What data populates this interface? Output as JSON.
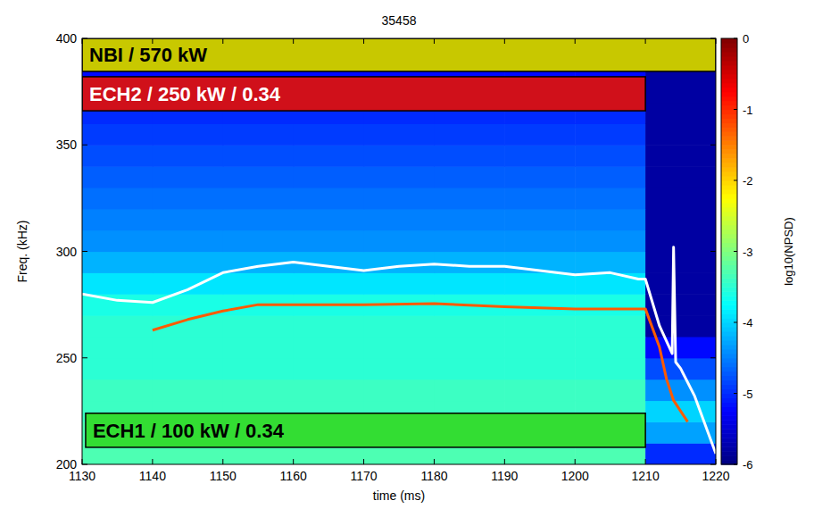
{
  "chart_data": {
    "type": "heatmap",
    "title": "35458",
    "x_label": "time (ms)",
    "y_label": "Freq. (kHz)",
    "xlim": [
      1130,
      1220
    ],
    "ylim": [
      200,
      400
    ],
    "xticks": [
      1130,
      1140,
      1150,
      1160,
      1170,
      1180,
      1190,
      1200,
      1210,
      1220
    ],
    "yticks": [
      200,
      250,
      300,
      350,
      400
    ],
    "heatmap": {
      "x": [
        1130,
        1140,
        1150,
        1160,
        1170,
        1180,
        1190,
        1200,
        1210,
        1220
      ],
      "y": [
        200,
        210,
        220,
        230,
        240,
        250,
        260,
        270,
        280,
        290,
        300,
        310,
        320,
        330,
        340,
        350,
        360,
        370,
        380,
        390,
        400
      ],
      "cells": [
        [
          -3.3,
          -3.3,
          -3.3,
          -3.3,
          -3.3,
          -3.3,
          -3.3,
          -3.3,
          -5.0
        ],
        [
          -3.3,
          -3.3,
          -3.3,
          -3.3,
          -3.3,
          -3.3,
          -3.3,
          -3.3,
          -4.3
        ],
        [
          -3.4,
          -3.4,
          -3.4,
          -3.4,
          -3.4,
          -3.4,
          -3.4,
          -3.4,
          -4.0
        ],
        [
          -3.4,
          -3.4,
          -3.4,
          -3.4,
          -3.4,
          -3.4,
          -3.4,
          -3.4,
          -4.4
        ],
        [
          -3.5,
          -3.5,
          -3.5,
          -3.5,
          -3.5,
          -3.5,
          -3.5,
          -3.5,
          -4.8
        ],
        [
          -3.5,
          -3.5,
          -3.5,
          -3.5,
          -3.5,
          -3.5,
          -3.5,
          -3.5,
          -5.2
        ],
        [
          -3.5,
          -3.5,
          -3.5,
          -3.5,
          -3.5,
          -3.5,
          -3.5,
          -3.5,
          -5.8
        ],
        [
          -3.6,
          -3.6,
          -3.6,
          -3.6,
          -3.6,
          -3.6,
          -3.6,
          -3.6,
          -5.8
        ],
        [
          -3.9,
          -3.9,
          -3.9,
          -3.9,
          -3.9,
          -3.9,
          -3.9,
          -3.9,
          -5.8
        ],
        [
          -4.2,
          -4.2,
          -4.2,
          -4.2,
          -4.2,
          -4.2,
          -4.2,
          -4.2,
          -5.8
        ],
        [
          -4.4,
          -4.4,
          -4.4,
          -4.4,
          -4.4,
          -4.4,
          -4.4,
          -4.4,
          -5.8
        ],
        [
          -4.5,
          -4.5,
          -4.5,
          -4.5,
          -4.5,
          -4.5,
          -4.5,
          -4.5,
          -5.8
        ],
        [
          -4.6,
          -4.6,
          -4.6,
          -4.6,
          -4.6,
          -4.6,
          -4.6,
          -4.6,
          -5.8
        ],
        [
          -4.7,
          -4.7,
          -4.7,
          -4.7,
          -4.7,
          -4.7,
          -4.7,
          -4.7,
          -5.8
        ],
        [
          -4.8,
          -4.8,
          -4.8,
          -4.8,
          -4.8,
          -4.8,
          -4.8,
          -4.8,
          -5.8
        ],
        [
          -4.9,
          -4.9,
          -4.9,
          -4.9,
          -4.9,
          -4.9,
          -4.9,
          -4.9,
          -5.8
        ],
        [
          -5.0,
          -5.0,
          -5.0,
          -5.0,
          -5.0,
          -5.0,
          -5.0,
          -5.0,
          -5.8
        ],
        [
          -5.1,
          -5.1,
          -5.1,
          -5.1,
          -5.1,
          -5.1,
          -5.1,
          -5.1,
          -5.8
        ],
        [
          -5.2,
          -5.2,
          -5.2,
          -5.2,
          -5.2,
          -5.2,
          -5.2,
          -5.2,
          -5.8
        ],
        [
          -5.3,
          -5.3,
          -5.3,
          -5.3,
          -5.3,
          -5.3,
          -5.3,
          -5.3,
          -5.8
        ]
      ]
    },
    "colorbar": {
      "label": "log10(NPSD)",
      "range": [
        -6,
        0
      ],
      "ticks": [
        0,
        -1,
        -2,
        -3,
        -4,
        -5,
        -6
      ]
    },
    "series": [
      {
        "type": "line",
        "color": "#ffffff",
        "x": [
          1130,
          1135,
          1140,
          1145,
          1150,
          1155,
          1160,
          1165,
          1170,
          1175,
          1180,
          1185,
          1190,
          1195,
          1200,
          1205,
          1209,
          1210,
          1212,
          1213.8,
          1214,
          1214.3,
          1215,
          1217,
          1220
        ],
        "values": [
          280,
          277,
          276,
          282,
          290,
          293,
          295,
          293,
          291,
          293,
          294,
          293,
          293,
          291,
          289,
          290,
          287,
          287,
          265,
          252,
          302,
          248,
          245,
          232,
          205
        ]
      },
      {
        "type": "line",
        "color": "#ff5a00",
        "x": [
          1140,
          1145,
          1150,
          1155,
          1160,
          1170,
          1180,
          1190,
          1200,
          1210,
          1212,
          1213,
          1214,
          1215,
          1216
        ],
        "values": [
          263,
          268,
          272,
          275,
          275,
          275,
          275.5,
          274,
          273,
          273,
          255,
          240,
          230,
          225,
          220
        ]
      }
    ],
    "annotations": [
      {
        "text": "NBI / 570 kW",
        "x": [
          1130,
          1220
        ],
        "y": [
          384.5,
          400
        ],
        "color": "#c8c800"
      },
      {
        "text": "ECH2 / 250 kW / 0.34",
        "x": [
          1130,
          1210
        ],
        "y": [
          366,
          382
        ],
        "color": "#d0101a"
      },
      {
        "text": "ECH1 / 100 kW / 0.34",
        "x": [
          1130.5,
          1210
        ],
        "y": [
          208,
          224
        ],
        "color": "#33dd33"
      }
    ]
  }
}
